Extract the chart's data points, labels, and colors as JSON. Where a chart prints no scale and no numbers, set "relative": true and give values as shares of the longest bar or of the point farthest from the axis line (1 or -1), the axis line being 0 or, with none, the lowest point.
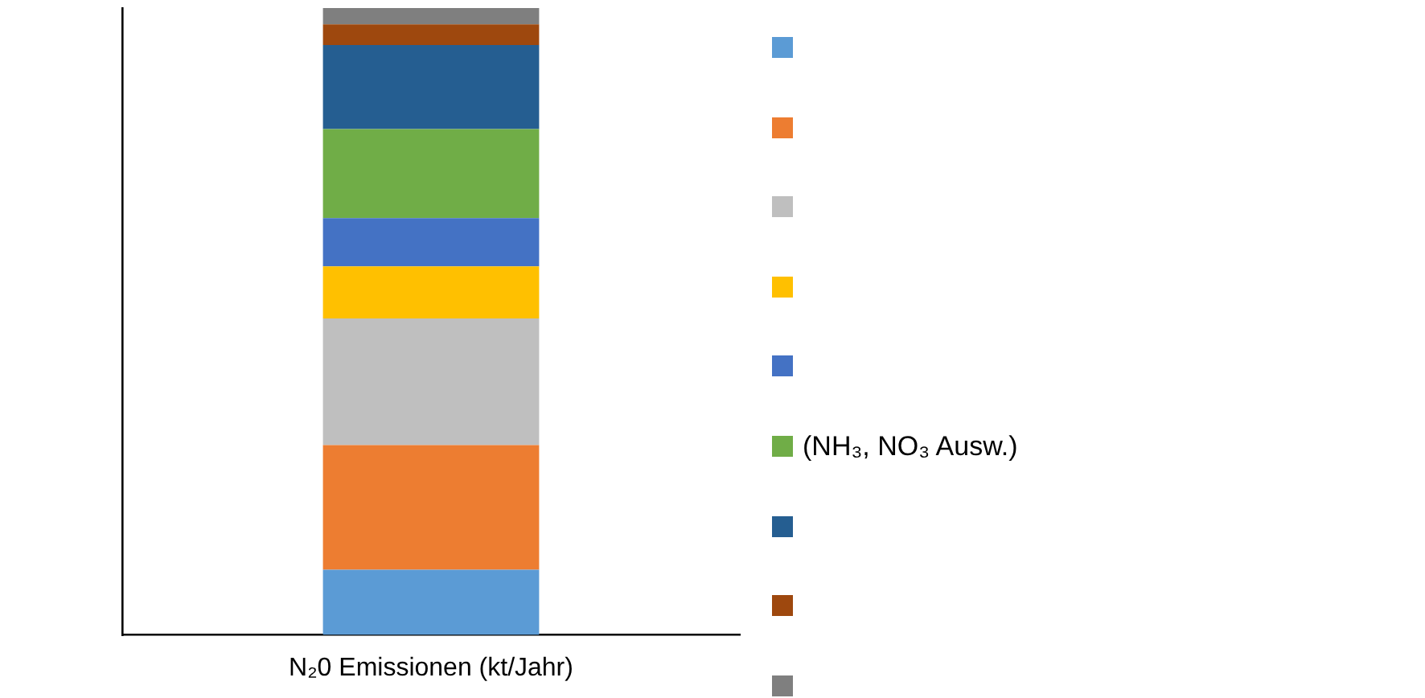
{
  "chart_data": {
    "type": "bar",
    "stacked": true,
    "relative": true,
    "legend": "right",
    "categories": [
      "N₂0 Emissionen (kt/Jahr)"
    ],
    "series": [
      {
        "color": "#5b9bd5",
        "values": [
          0.104
        ]
      },
      {
        "color": "#ed7d31",
        "values": [
          0.199
        ]
      },
      {
        "color": "#bfbfbf",
        "values": [
          0.202
        ]
      },
      {
        "color": "#ffc000",
        "values": [
          0.083
        ]
      },
      {
        "color": "#4472c4",
        "values": [
          0.077
        ]
      },
      {
        "name": "(NH₃, NO₃ Ausw.)",
        "color": "#70ad47",
        "values": [
          0.142
        ]
      },
      {
        "color": "#255e91",
        "values": [
          0.134
        ]
      },
      {
        "color": "#9e480e",
        "values": [
          0.033
        ]
      },
      {
        "color": "#7f7f7f",
        "values": [
          0.026
        ]
      }
    ]
  }
}
